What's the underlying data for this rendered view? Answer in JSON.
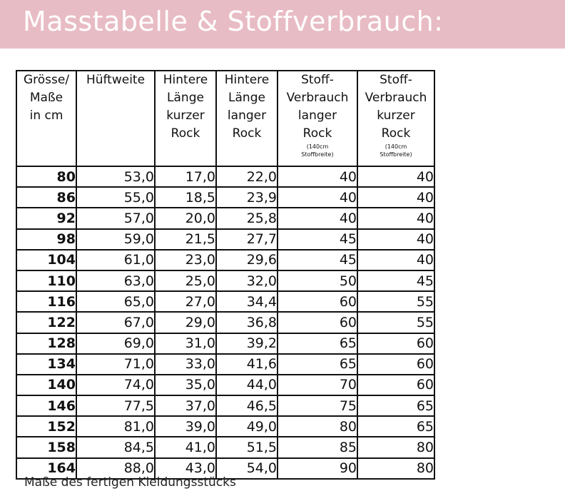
{
  "header": {
    "title": "Masstabelle & Stoffverbrauch:"
  },
  "table": {
    "headers": [
      {
        "lines": [
          "Grösse/",
          "Maße",
          "in cm"
        ],
        "note": []
      },
      {
        "lines": [
          "Hüftweite"
        ],
        "note": []
      },
      {
        "lines": [
          "Hintere",
          "Länge",
          "kurzer",
          "Rock"
        ],
        "note": []
      },
      {
        "lines": [
          "Hintere",
          "Länge",
          "langer",
          "Rock"
        ],
        "note": []
      },
      {
        "lines": [
          "Stoff-",
          "Verbrauch",
          "langer",
          "Rock"
        ],
        "note": [
          "(140cm",
          "Stoffbreite)"
        ]
      },
      {
        "lines": [
          "Stoff-",
          "Verbrauch",
          "kurzer",
          "Rock"
        ],
        "note": [
          "(140cm",
          "Stoffbreite)"
        ]
      }
    ],
    "rows": [
      [
        "80",
        "53,0",
        "17,0",
        "22,0",
        "40",
        "40"
      ],
      [
        "86",
        "55,0",
        "18,5",
        "23,9",
        "40",
        "40"
      ],
      [
        "92",
        "57,0",
        "20,0",
        "25,8",
        "40",
        "40"
      ],
      [
        "98",
        "59,0",
        "21,5",
        "27,7",
        "45",
        "40"
      ],
      [
        "104",
        "61,0",
        "23,0",
        "29,6",
        "45",
        "40"
      ],
      [
        "110",
        "63,0",
        "25,0",
        "32,0",
        "50",
        "45"
      ],
      [
        "116",
        "65,0",
        "27,0",
        "34,4",
        "60",
        "55"
      ],
      [
        "122",
        "67,0",
        "29,0",
        "36,8",
        "60",
        "55"
      ],
      [
        "128",
        "69,0",
        "31,0",
        "39,2",
        "65",
        "60"
      ],
      [
        "134",
        "71,0",
        "33,0",
        "41,6",
        "65",
        "60"
      ],
      [
        "140",
        "74,0",
        "35,0",
        "44,0",
        "70",
        "60"
      ],
      [
        "146",
        "77,5",
        "37,0",
        "46,5",
        "75",
        "65"
      ],
      [
        "152",
        "81,0",
        "39,0",
        "49,0",
        "80",
        "65"
      ],
      [
        "158",
        "84,5",
        "41,0",
        "51,5",
        "85",
        "80"
      ],
      [
        "164",
        "88,0",
        "43,0",
        "54,0",
        "90",
        "80"
      ]
    ]
  },
  "footer": {
    "caption": "Maße des fertigen Kleidungsstücks"
  },
  "colors": {
    "banner": "#e8bcc4",
    "title": "#ffffff",
    "border": "#111111"
  }
}
